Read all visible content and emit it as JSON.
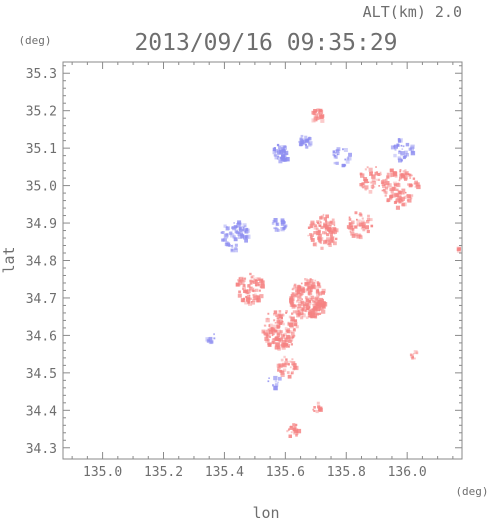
{
  "chart_data": {
    "type": "heatmap",
    "title": "2013/09/16 09:35:29",
    "subtitle": "ALT(km)  2.0",
    "xlabel": "lon",
    "ylabel": "lat",
    "x_unit": "(deg)",
    "y_unit": "(deg)",
    "xlim": [
      134.87,
      136.18
    ],
    "ylim": [
      34.27,
      35.33
    ],
    "x_ticks": [
      "135.0",
      "135.2",
      "135.4",
      "135.6",
      "135.8",
      "136.0"
    ],
    "y_ticks": [
      "34.3",
      "34.4",
      "34.5",
      "34.6",
      "34.7",
      "34.8",
      "34.9",
      "35.0",
      "35.1",
      "35.2",
      "35.3"
    ],
    "grid": false,
    "colors": {
      "negative": "#8c8cf0",
      "positive": "#f58282",
      "axis": "#8a8a8a",
      "text": "#6e6e6e"
    },
    "regions": [
      {
        "sign": "negative",
        "lon": 135.43,
        "lat": 34.87,
        "r": 0.045,
        "n": 70
      },
      {
        "sign": "negative",
        "lon": 135.58,
        "lat": 35.09,
        "r": 0.025,
        "n": 40
      },
      {
        "sign": "negative",
        "lon": 135.66,
        "lat": 35.12,
        "r": 0.02,
        "n": 25
      },
      {
        "sign": "negative",
        "lon": 135.78,
        "lat": 35.08,
        "r": 0.03,
        "n": 25
      },
      {
        "sign": "negative",
        "lon": 135.98,
        "lat": 35.1,
        "r": 0.035,
        "n": 30
      },
      {
        "sign": "negative",
        "lon": 135.56,
        "lat": 34.48,
        "r": 0.02,
        "n": 10
      },
      {
        "sign": "negative",
        "lon": 135.35,
        "lat": 34.6,
        "r": 0.015,
        "n": 8
      },
      {
        "sign": "negative",
        "lon": 135.58,
        "lat": 34.9,
        "r": 0.025,
        "n": 20
      },
      {
        "sign": "positive",
        "lon": 135.67,
        "lat": 34.7,
        "r": 0.06,
        "n": 220
      },
      {
        "sign": "positive",
        "lon": 135.58,
        "lat": 34.62,
        "r": 0.06,
        "n": 150
      },
      {
        "sign": "positive",
        "lon": 135.48,
        "lat": 34.73,
        "r": 0.045,
        "n": 90
      },
      {
        "sign": "positive",
        "lon": 135.72,
        "lat": 34.88,
        "r": 0.05,
        "n": 90
      },
      {
        "sign": "positive",
        "lon": 135.97,
        "lat": 35.0,
        "r": 0.06,
        "n": 110
      },
      {
        "sign": "positive",
        "lon": 135.84,
        "lat": 34.9,
        "r": 0.04,
        "n": 50
      },
      {
        "sign": "positive",
        "lon": 135.7,
        "lat": 35.19,
        "r": 0.02,
        "n": 25
      },
      {
        "sign": "positive",
        "lon": 135.88,
        "lat": 35.02,
        "r": 0.04,
        "n": 40
      },
      {
        "sign": "positive",
        "lon": 135.62,
        "lat": 34.35,
        "r": 0.02,
        "n": 18
      },
      {
        "sign": "positive",
        "lon": 135.7,
        "lat": 34.41,
        "r": 0.015,
        "n": 10
      },
      {
        "sign": "positive",
        "lon": 136.02,
        "lat": 34.55,
        "r": 0.012,
        "n": 8
      },
      {
        "sign": "positive",
        "lon": 136.17,
        "lat": 34.83,
        "r": 0.015,
        "n": 8
      },
      {
        "sign": "positive",
        "lon": 135.6,
        "lat": 34.52,
        "r": 0.03,
        "n": 35
      }
    ]
  }
}
